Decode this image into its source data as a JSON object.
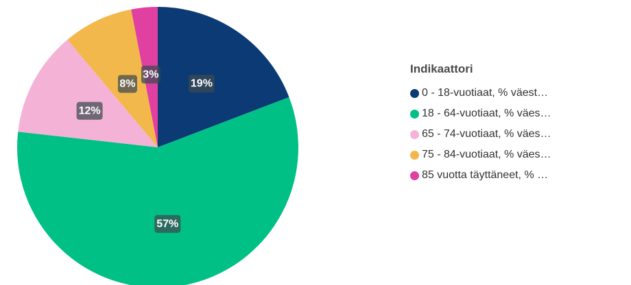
{
  "chart_data": {
    "type": "pie",
    "legend_title": "Indikaattori",
    "legend_position": "right",
    "slices": [
      {
        "label": "0 - 18-vuotiaat, % väest…",
        "value": 19,
        "display": "19%",
        "color": "#0b3a75"
      },
      {
        "label": "18 - 64-vuotiaat, % väes…",
        "value": 57,
        "display": "57%",
        "color": "#00c085"
      },
      {
        "label": "65 - 74-vuotiaat, % väes…",
        "value": 12,
        "display": "12%",
        "color": "#f4b3d6"
      },
      {
        "label": "75 - 84-vuotiaat, % väes…",
        "value": 8,
        "display": "8%",
        "color": "#f2b84b"
      },
      {
        "label": "85 vuotta täyttäneet, % …",
        "value": 3,
        "display": "3%",
        "color": "#e040a0"
      }
    ]
  }
}
